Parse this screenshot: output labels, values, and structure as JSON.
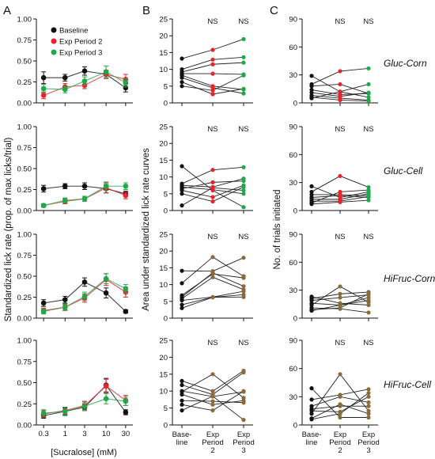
{
  "panel_letters": [
    "A",
    "B",
    "C"
  ],
  "col_a": {
    "ylabel": "Standardized lick rate (prop. of max licks/trial)",
    "xlabel": "[Sucralose] (mM)",
    "yticks": [
      "0.00",
      "0.25",
      "0.50",
      "0.75",
      "1.00"
    ],
    "xticks": [
      "0.3",
      "1",
      "3",
      "10",
      "30"
    ],
    "legend": [
      "Baseline",
      "Exp Period 2",
      "Exp Period 3"
    ]
  },
  "col_b": {
    "ylabel": "Area under standardized lick rate curves",
    "yticks": [
      "0",
      "5",
      "10",
      "15",
      "20",
      "25"
    ],
    "xticks": [
      [
        "Base-",
        "line"
      ],
      [
        "Exp",
        "Period",
        "2"
      ],
      [
        "Exp",
        "Period",
        "3"
      ]
    ],
    "ns": [
      "NS",
      "NS"
    ]
  },
  "col_c": {
    "ylabel": "No. of trials initiated",
    "yticks": [
      "0",
      "30",
      "60",
      "90"
    ],
    "xticks": [
      [
        "Base-",
        "line"
      ],
      [
        "Exp",
        "Period",
        "2"
      ],
      [
        "Exp",
        "Period",
        "3"
      ]
    ],
    "ns": [
      "NS",
      "NS"
    ]
  },
  "row_labels": [
    "Gluc-Corn",
    "Gluc-Cell",
    "HiFruc-Corn",
    "HiFruc-Cell"
  ],
  "colors": {
    "baseline": "#111111",
    "exp2": "#e8232a",
    "exp3": "#1fa84a",
    "mixed": "#8a6a3a"
  },
  "chart_data": [
    {
      "type": "line",
      "title": "",
      "xlabel": "[Sucralose] (mM)",
      "ylabel": "Standardized lick rate (prop. of max licks/trial)",
      "x": [
        0.3,
        1,
        3,
        10,
        30
      ],
      "xscale": "log",
      "ylim": [
        0,
        1
      ],
      "rows": [
        {
          "series": [
            {
              "name": "Baseline",
              "values": [
                0.3,
                0.3,
                0.38,
                0.34,
                0.18
              ],
              "err": [
                0.07,
                0.04,
                0.05,
                0.04,
                0.05
              ]
            },
            {
              "name": "Exp Period 2",
              "values": [
                0.09,
                0.19,
                0.21,
                0.34,
                0.28
              ],
              "err": [
                0.04,
                0.04,
                0.04,
                0.05,
                0.06
              ]
            },
            {
              "name": "Exp Period 3",
              "values": [
                0.17,
                0.16,
                0.26,
                0.37,
                0.24
              ],
              "err": [
                0.05,
                0.04,
                0.05,
                0.07,
                0.05
              ]
            }
          ]
        },
        {
          "series": [
            {
              "name": "Baseline",
              "values": [
                0.26,
                0.29,
                0.29,
                0.26,
                0.2
              ],
              "err": [
                0.04,
                0.03,
                0.04,
                0.05,
                0.03
              ]
            },
            {
              "name": "Exp Period 2",
              "values": [
                0.06,
                0.11,
                0.14,
                0.27,
                0.18
              ],
              "err": [
                0.02,
                0.03,
                0.03,
                0.06,
                0.04
              ]
            },
            {
              "name": "Exp Period 3",
              "values": [
                0.06,
                0.12,
                0.14,
                0.29,
                0.29
              ],
              "err": [
                0.02,
                0.03,
                0.03,
                0.05,
                0.04
              ]
            }
          ]
        },
        {
          "series": [
            {
              "name": "Baseline",
              "values": [
                0.18,
                0.22,
                0.43,
                0.3,
                0.08
              ],
              "err": [
                0.04,
                0.04,
                0.05,
                0.06,
                0.02
              ]
            },
            {
              "name": "Exp Period 2",
              "values": [
                0.09,
                0.13,
                0.24,
                0.46,
                0.31
              ],
              "err": [
                0.03,
                0.03,
                0.05,
                0.07,
                0.06
              ]
            },
            {
              "name": "Exp Period 3",
              "values": [
                0.08,
                0.13,
                0.26,
                0.47,
                0.35
              ],
              "err": [
                0.03,
                0.04,
                0.05,
                0.06,
                0.05
              ]
            }
          ]
        },
        {
          "series": [
            {
              "name": "Baseline",
              "values": [
                0.11,
                0.16,
                0.21,
                0.47,
                0.15
              ],
              "err": [
                0.03,
                0.04,
                0.04,
                0.08,
                0.03
              ]
            },
            {
              "name": "Exp Period 2",
              "values": [
                0.13,
                0.17,
                0.23,
                0.46,
                0.29
              ],
              "err": [
                0.04,
                0.04,
                0.05,
                0.08,
                0.06
              ]
            },
            {
              "name": "Exp Period 3",
              "values": [
                0.14,
                0.16,
                0.22,
                0.31,
                0.28
              ],
              "err": [
                0.04,
                0.05,
                0.05,
                0.06,
                0.05
              ]
            }
          ]
        }
      ]
    },
    {
      "type": "line",
      "title": "",
      "ylabel": "Area under standardized lick rate curves",
      "categories": [
        "Baseline",
        "Exp Period 2",
        "Exp Period 3"
      ],
      "ylim": [
        0,
        25
      ],
      "rows": [
        {
          "subjects": [
            [
              13.2,
              15.8,
              19.0
            ],
            [
              10.0,
              12.9,
              13.6
            ],
            [
              9.2,
              11.5,
              12.0
            ],
            [
              8.7,
              8.7,
              8.5
            ],
            [
              8.2,
              5.0,
              4.0
            ],
            [
              7.5,
              4.5,
              2.8
            ],
            [
              6.2,
              2.6,
              4.2
            ],
            [
              5.0,
              3.7,
              8.2
            ]
          ]
        },
        {
          "subjects": [
            [
              13.2,
              6.0,
              1.0
            ],
            [
              8.0,
              12.1,
              12.9
            ],
            [
              7.5,
              7.0,
              9.5
            ],
            [
              7.0,
              6.2,
              5.0
            ],
            [
              6.5,
              8.4,
              8.8
            ],
            [
              6.0,
              4.0,
              7.5
            ],
            [
              5.0,
              2.7,
              7.0
            ],
            [
              1.5,
              6.8,
              6.0
            ]
          ]
        },
        {
          "subjects": [
            [
              14.1,
              14.0,
              18.0
            ],
            [
              10.4,
              18.2,
              12.5
            ],
            [
              6.8,
              13.2,
              12.0
            ],
            [
              6.3,
              13.5,
              9.5
            ],
            [
              5.8,
              12.2,
              8.5
            ],
            [
              5.3,
              6.3,
              8.0
            ],
            [
              4.0,
              6.2,
              7.0
            ],
            [
              3.0,
              6.2,
              6.3
            ]
          ]
        },
        {
          "subjects": [
            [
              13.0,
              10.0,
              16.0
            ],
            [
              11.8,
              9.0,
              15.5
            ],
            [
              10.0,
              8.4,
              9.8
            ],
            [
              9.8,
              15.0,
              8.0
            ],
            [
              9.0,
              6.0,
              7.2
            ],
            [
              7.2,
              7.0,
              6.6
            ],
            [
              6.0,
              4.3,
              10.0
            ],
            [
              4.3,
              8.5,
              1.5
            ]
          ]
        }
      ]
    },
    {
      "type": "line",
      "title": "",
      "ylabel": "No. of trials initiated",
      "categories": [
        "Baseline",
        "Exp Period 2",
        "Exp Period 3"
      ],
      "ylim": [
        0,
        90
      ],
      "rows": [
        {
          "subjects": [
            [
              29,
              12,
              6
            ],
            [
              20,
              34,
              37
            ],
            [
              18,
              20,
              10
            ],
            [
              14,
              9,
              10
            ],
            [
              11,
              7,
              11
            ],
            [
              8,
              5,
              3
            ],
            [
              6,
              3,
              2
            ],
            [
              5,
              12,
              20
            ]
          ]
        },
        {
          "subjects": [
            [
              26,
              14,
              20
            ],
            [
              20,
              37,
              25
            ],
            [
              17,
              17,
              16
            ],
            [
              14,
              16,
              14
            ],
            [
              12,
              12,
              18
            ],
            [
              10,
              10,
              15
            ],
            [
              8,
              20,
              22
            ],
            [
              7,
              9,
              11
            ]
          ]
        },
        {
          "subjects": [
            [
              23,
              16,
              14
            ],
            [
              21,
              26,
              28
            ],
            [
              19,
              22,
              25
            ],
            [
              16,
              14,
              19
            ],
            [
              14,
              34,
              17
            ],
            [
              11,
              10,
              6
            ],
            [
              9,
              11,
              26
            ],
            [
              8,
              14,
              22
            ]
          ]
        },
        {
          "subjects": [
            [
              39,
              8,
              8
            ],
            [
              27,
              32,
              38
            ],
            [
              20,
              30,
              24
            ],
            [
              17,
              20,
              20
            ],
            [
              15,
              14,
              30
            ],
            [
              12,
              54,
              15
            ],
            [
              7,
              22,
              12
            ],
            [
              6,
              12,
              34
            ]
          ]
        }
      ]
    }
  ]
}
